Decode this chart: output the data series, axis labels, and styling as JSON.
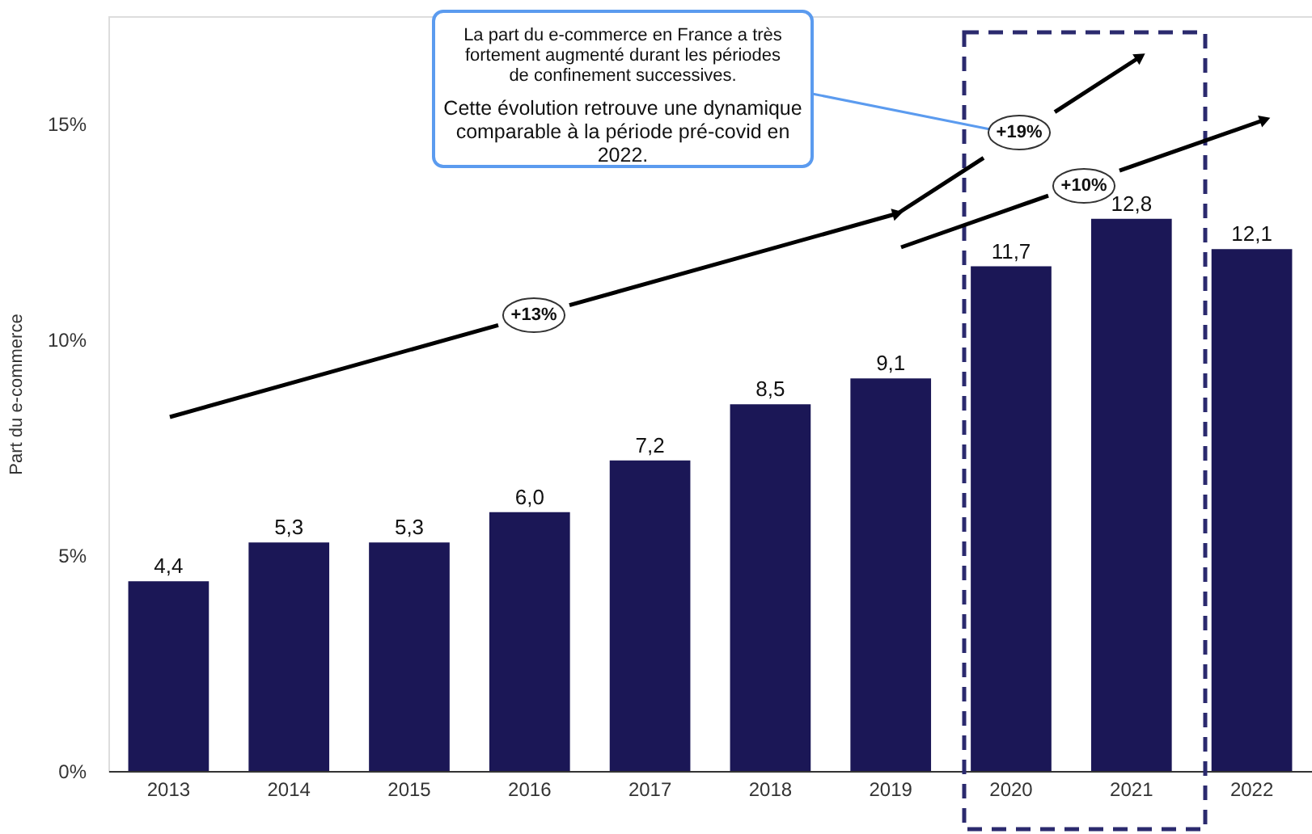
{
  "chart_data": {
    "type": "bar",
    "ylabel": "Part du e-commerce",
    "categories": [
      "2013",
      "2014",
      "2015",
      "2016",
      "2017",
      "2018",
      "2019",
      "2020",
      "2021",
      "2022"
    ],
    "values": [
      4.4,
      5.3,
      5.3,
      6.0,
      7.2,
      8.5,
      9.1,
      11.7,
      12.8,
      12.1
    ],
    "value_labels": [
      "4,4",
      "5,3",
      "5,3",
      "6,0",
      "7,2",
      "8,5",
      "9,1",
      "11,7",
      "12,8",
      "12,1"
    ],
    "color": "#1b1756",
    "ylim": [
      0,
      17.5
    ],
    "yticks": [
      {
        "value": 0,
        "label": "0%"
      },
      {
        "value": 5,
        "label": "5%"
      },
      {
        "value": 10,
        "label": "10%"
      },
      {
        "value": 15,
        "label": "15%"
      }
    ],
    "grid": false,
    "annotations": [
      "+13%",
      "+19%",
      "+10%",
      "La part du e-commerce en France a très\nfortement augmenté durant les périodes\nde confinement successives.",
      "Cette évolution retrouve une dynamique\ncomparable à la période pré-covid en\n2022."
    ]
  }
}
